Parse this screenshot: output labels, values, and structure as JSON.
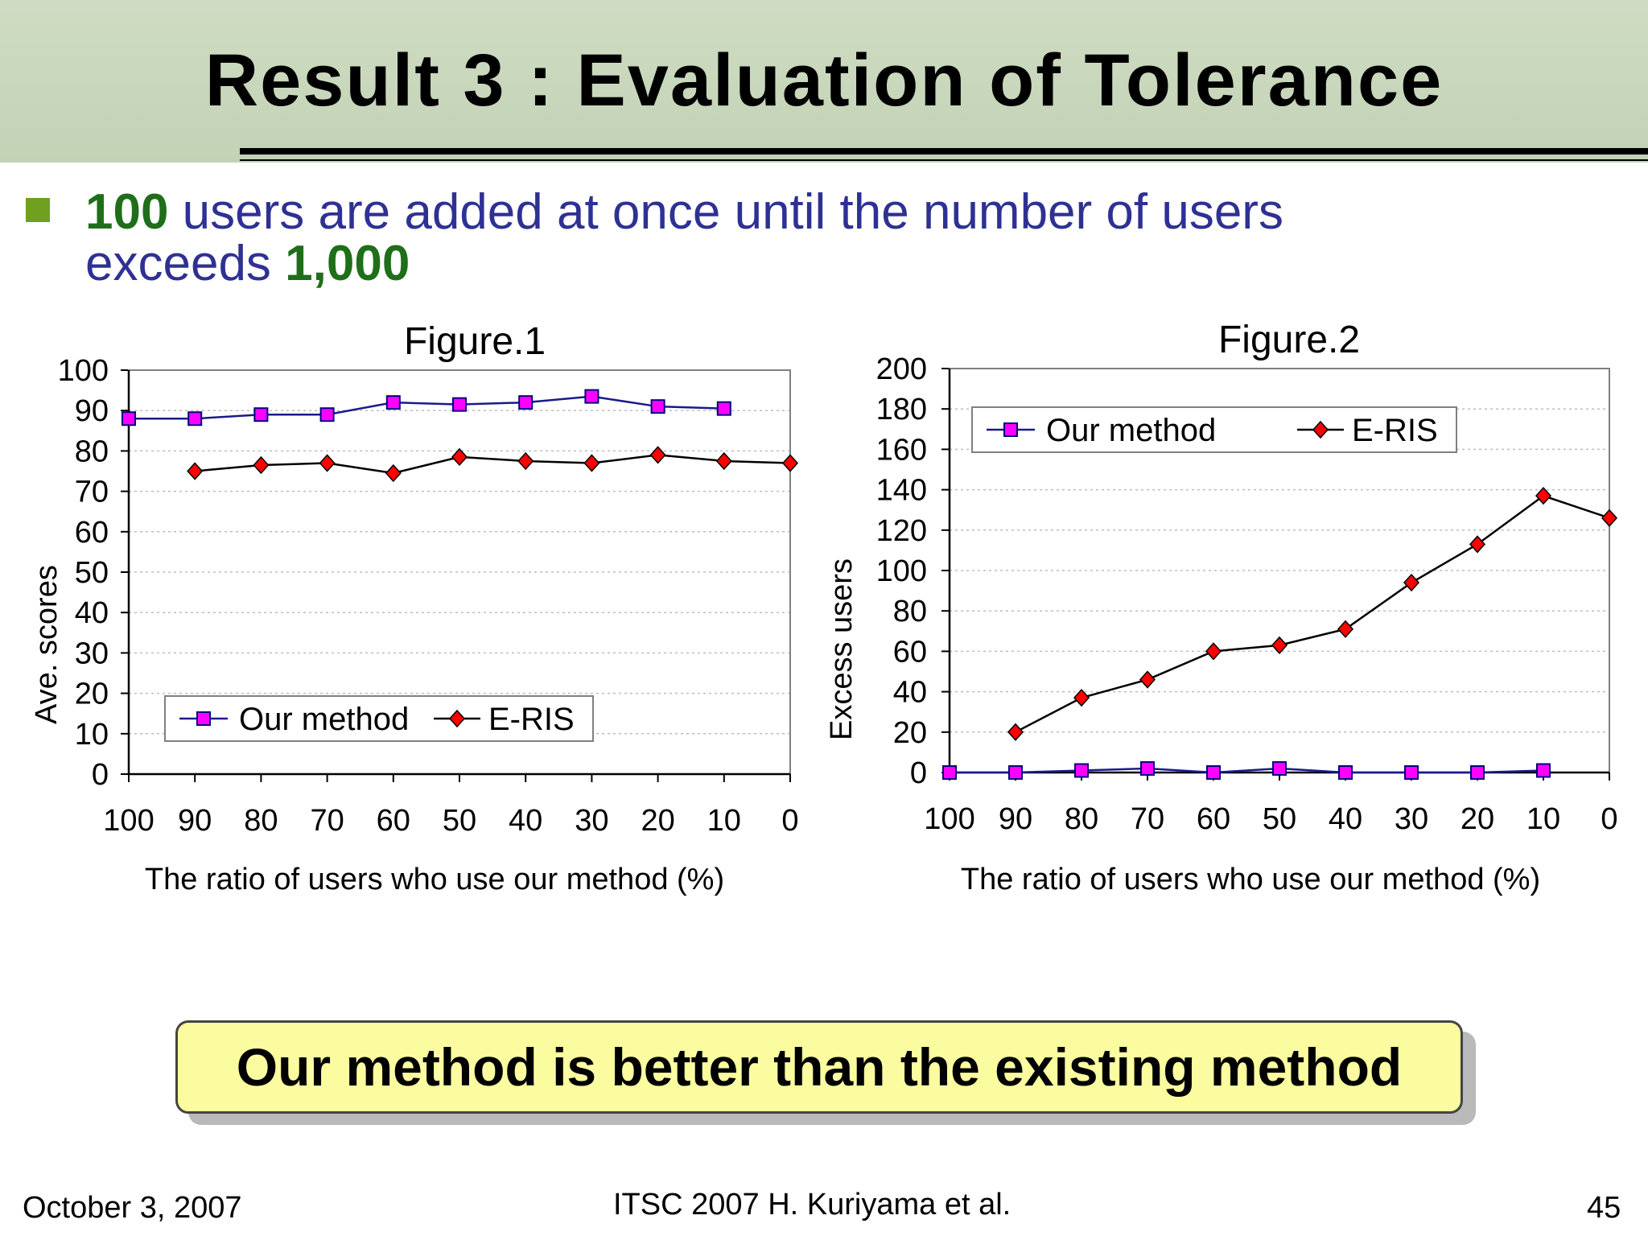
{
  "title": "Result 3 : Evaluation of Tolerance",
  "bullet": {
    "num1": "100",
    "text1": " users are added at once until the number of users",
    "text2": "exceeds ",
    "num2": "1,000"
  },
  "conclusion": "Our method is better than the existing method",
  "footer": {
    "date": "October 3, 2007",
    "center": "ITSC 2007 H. Kuriyama et al.",
    "page": "45"
  },
  "colors": {
    "our_method": "#ff00ff",
    "e_ris": "#ff0000",
    "our_line": "#1a1a8c",
    "e_ris_line": "#000000",
    "bullet_text": "#2e3192",
    "bullet_number": "#1f6e1a",
    "conclusion_bg": "#fbfba0"
  },
  "chart_data": [
    {
      "type": "line",
      "title": "Figure.1",
      "xlabel": "The ratio of users who use our method (%)",
      "ylabel": "Ave. scores",
      "ylabel_display": "Ave. scores",
      "categories": [
        "100",
        "90",
        "80",
        "70",
        "60",
        "50",
        "40",
        "30",
        "20",
        "10",
        "0"
      ],
      "ylim": [
        0,
        100
      ],
      "yticks": [
        0,
        10,
        20,
        30,
        40,
        50,
        60,
        70,
        80,
        90,
        100
      ],
      "legend_position": "bottom-left",
      "grid": "horizontal dotted",
      "series": [
        {
          "name": "Our method",
          "marker": "square",
          "values": [
            88,
            88,
            89,
            89,
            92,
            91.5,
            92,
            93.5,
            91,
            90.5,
            null
          ]
        },
        {
          "name": "E-RIS",
          "marker": "diamond",
          "values": [
            null,
            75,
            76.5,
            77,
            74.5,
            78.5,
            77.5,
            77,
            79,
            77.5,
            77
          ]
        }
      ]
    },
    {
      "type": "line",
      "title": "Figure.2",
      "xlabel": "The ratio of users who use our method (%)",
      "ylabel": "Excess users",
      "ylabel_display": "Excess users",
      "categories": [
        "100",
        "90",
        "80",
        "70",
        "60",
        "50",
        "40",
        "30",
        "20",
        "10",
        "0"
      ],
      "ylim": [
        0,
        200
      ],
      "yticks": [
        0,
        20,
        40,
        60,
        80,
        100,
        120,
        140,
        160,
        180,
        200
      ],
      "legend_position": "top-left",
      "grid": "horizontal dotted",
      "series": [
        {
          "name": "Our method",
          "marker": "square",
          "values": [
            0,
            0,
            1,
            2,
            0,
            2,
            0,
            0,
            0,
            1,
            null
          ]
        },
        {
          "name": "E-RIS",
          "marker": "diamond",
          "values": [
            null,
            20,
            37,
            46,
            60,
            63,
            71,
            94,
            113,
            137,
            126
          ]
        }
      ]
    }
  ]
}
